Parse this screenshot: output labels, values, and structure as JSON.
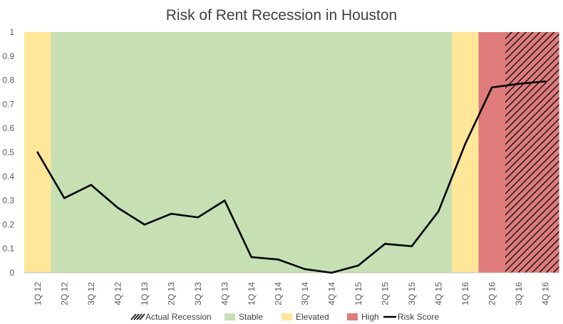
{
  "chart_data": {
    "type": "line",
    "title": "Risk of Rent Recession in Houston",
    "xlabel": "",
    "ylabel": "",
    "ylim": [
      0,
      1
    ],
    "yticks": [
      "0",
      "0.1",
      "0.2",
      "0.3",
      "0.4",
      "0.5",
      "0.6",
      "0.7",
      "0.8",
      "0.9",
      "1"
    ],
    "categories": [
      "1Q 12",
      "2Q 12",
      "3Q 12",
      "4Q 12",
      "1Q 13",
      "2Q 13",
      "3Q 13",
      "4Q 13",
      "1Q 14",
      "2Q 14",
      "3Q 14",
      "4Q 14",
      "1Q 15",
      "2Q 15",
      "3Q 15",
      "4Q 15",
      "1Q 16",
      "2Q 16",
      "3Q 16",
      "4Q 16"
    ],
    "series": [
      {
        "name": "Risk Score",
        "values": [
          0.5,
          0.31,
          0.365,
          0.27,
          0.2,
          0.245,
          0.23,
          0.3,
          0.065,
          0.055,
          0.015,
          0.0,
          0.03,
          0.12,
          0.11,
          0.255,
          0.535,
          0.77,
          0.785,
          0.795
        ]
      }
    ],
    "background_bands": [
      "Elevated",
      "Stable",
      "Stable",
      "Stable",
      "Stable",
      "Stable",
      "Stable",
      "Stable",
      "Stable",
      "Stable",
      "Stable",
      "Stable",
      "Stable",
      "Stable",
      "Stable",
      "Stable",
      "Elevated",
      "High",
      "High",
      "High"
    ],
    "actual_recession": [
      "3Q 16",
      "4Q 16"
    ],
    "legend": [
      {
        "key": "actual_recession",
        "label": "Actual Recession"
      },
      {
        "key": "stable",
        "label": "Stable"
      },
      {
        "key": "elevated",
        "label": "Elevated"
      },
      {
        "key": "high",
        "label": "High"
      },
      {
        "key": "risk_score",
        "label": "Risk Score"
      }
    ],
    "legend_position": "bottom",
    "grid": false,
    "colors": {
      "stable": "#c6e0b4",
      "elevated": "#ffe699",
      "high": "#e07b7b",
      "hatch": "#1a1a1a",
      "line": "#000000",
      "axis": "#bfbfbf",
      "text": "#595959"
    }
  }
}
